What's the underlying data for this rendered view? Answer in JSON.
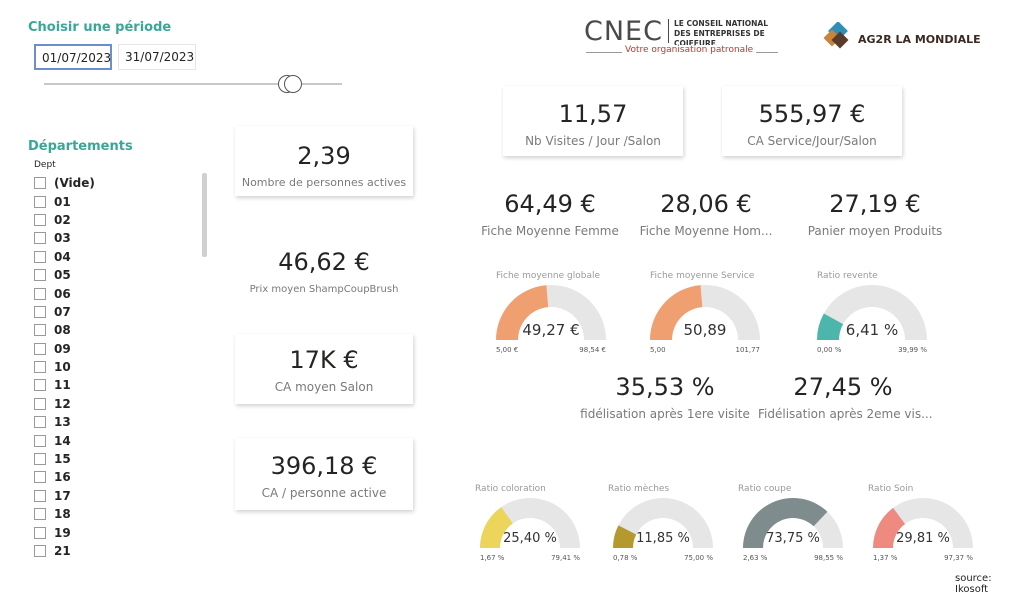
{
  "period": {
    "title": "Choisir une période",
    "start_date": "01/07/2023",
    "end_date": "31/07/2023",
    "slider_value": 0.82
  },
  "departments": {
    "title": "Départements",
    "column_label": "Dept",
    "items": [
      "(Vide)",
      "01",
      "02",
      "03",
      "04",
      "05",
      "06",
      "07",
      "08",
      "09",
      "10",
      "11",
      "12",
      "13",
      "14",
      "15",
      "16",
      "17",
      "18",
      "19",
      "21"
    ]
  },
  "logos": {
    "cnec_mark": "CNEC",
    "cnec_line1": "LE CONSEIL NATIONAL",
    "cnec_line2": "DES ENTREPRISES DE COIFFURE",
    "cnec_tagline": "Votre organisation patronale",
    "ag2r": "AG2R LA MONDIALE"
  },
  "kpis_left": [
    {
      "value": "2,39",
      "label": "Nombre de personnes actives"
    },
    {
      "value": "46,62 €",
      "label": "Prix moyen ShampCoupBrush"
    },
    {
      "value": "17K €",
      "label": "CA moyen Salon"
    },
    {
      "value": "396,18 €",
      "label": "CA / personne active"
    }
  ],
  "kpis_top": [
    {
      "value": "11,57",
      "label": "Nb Visites / Jour /Salon"
    },
    {
      "value": "555,97 €",
      "label": "CA Service/Jour/Salon"
    }
  ],
  "kpis_mid": [
    {
      "value": "64,49 €",
      "label": "Fiche Moyenne Femme"
    },
    {
      "value": "28,06 €",
      "label": "Fiche Moyenne Hom..."
    },
    {
      "value": "27,19 €",
      "label": "Panier moyen Produits"
    }
  ],
  "kpis_fidel": [
    {
      "value": "35,53 %",
      "label": "fidélisation après 1ere visite"
    },
    {
      "value": "27,45 %",
      "label": "Fidélisation après 2eme vis..."
    }
  ],
  "gauges_row1": [
    {
      "title": "Fiche moyenne globale",
      "value_label": "49,27 €",
      "min_label": "5,00 €",
      "max_label": "98,54 €",
      "min": 5.0,
      "max": 98.54,
      "value": 49.27,
      "color": "#f0a070"
    },
    {
      "title": "Fiche moyenne Service",
      "value_label": "50,89",
      "min_label": "5,00",
      "max_label": "101,77",
      "min": 5.0,
      "max": 101.77,
      "value": 50.89,
      "color": "#f0a070"
    },
    {
      "title": "Ratio revente",
      "value_label": "6,41 %",
      "min_label": "0,00 %",
      "max_label": "39,99 %",
      "min": 0.0,
      "max": 39.99,
      "value": 6.41,
      "color": "#4db6ac"
    }
  ],
  "gauges_row2": [
    {
      "title": "Ratio coloration",
      "value_label": "25,40 %",
      "min_label": "1,67 %",
      "max_label": "79,41 %",
      "min": 1.67,
      "max": 79.41,
      "value": 25.4,
      "color": "#ecd55a"
    },
    {
      "title": "Ratio mèches",
      "value_label": "11,85 %",
      "min_label": "0,78 %",
      "max_label": "75,00 %",
      "min": 0.78,
      "max": 75.0,
      "value": 11.85,
      "color": "#b49a2e"
    },
    {
      "title": "Ratio coupe",
      "value_label": "73,75 %",
      "min_label": "2,63 %",
      "max_label": "98,55 %",
      "min": 2.63,
      "max": 98.55,
      "value": 73.75,
      "color": "#7f8c8d"
    },
    {
      "title": "Ratio Soin",
      "value_label": "29,81 %",
      "min_label": "1,37 %",
      "max_label": "97,37 %",
      "min": 1.37,
      "max": 97.37,
      "value": 29.81,
      "color": "#ef8a80"
    }
  ],
  "footer": {
    "source": "source: Ikosoft"
  }
}
